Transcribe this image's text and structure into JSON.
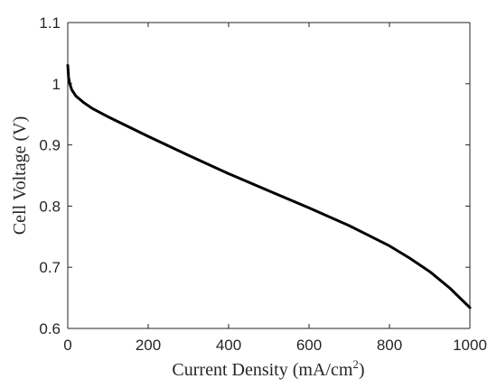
{
  "chart_data": {
    "type": "line",
    "title": "",
    "xlabel": "Current Density (mA/cm",
    "xlabel_superscript": "2",
    "xlabel_suffix": ")",
    "ylabel": "Cell Voltage (V)",
    "xlim": [
      0,
      1000
    ],
    "ylim": [
      0.6,
      1.1
    ],
    "xticks": [
      0,
      200,
      400,
      600,
      800,
      1000
    ],
    "xtick_labels": [
      "0",
      "200",
      "400",
      "600",
      "800",
      "1000"
    ],
    "yticks": [
      0.6,
      0.7,
      0.8,
      0.9,
      1.0,
      1.1
    ],
    "ytick_labels": [
      "0.6",
      "0.7",
      "0.8",
      "0.9",
      "1",
      "1.1"
    ],
    "grid": false,
    "series": [
      {
        "color": "#000000",
        "x": [
          0,
          2,
          5,
          10,
          20,
          40,
          60,
          100,
          150,
          200,
          300,
          400,
          500,
          600,
          700,
          800,
          850,
          900,
          950,
          1000
        ],
        "y": [
          1.03,
          1.01,
          1.0,
          0.99,
          0.98,
          0.969,
          0.96,
          0.946,
          0.93,
          0.914,
          0.883,
          0.853,
          0.825,
          0.797,
          0.768,
          0.735,
          0.715,
          0.693,
          0.666,
          0.634
        ]
      }
    ]
  }
}
